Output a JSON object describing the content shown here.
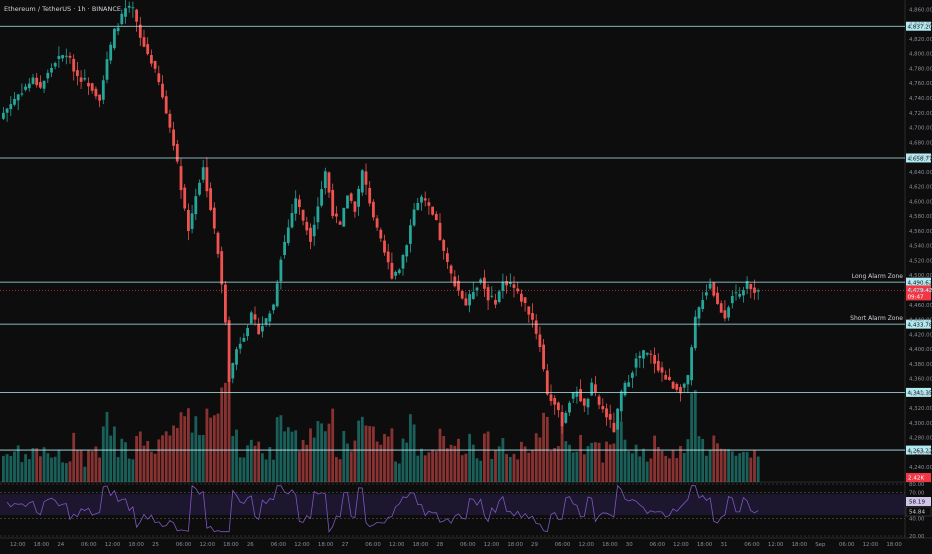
{
  "header": {
    "symbol": "Ethereum / TetherUS · 1h · BINANCE"
  },
  "colors": {
    "background": "#0d0d0d",
    "up": "#26a69a",
    "down": "#ef5350",
    "level_line": "#b2ebf2",
    "rsi_line": "#7e57c2",
    "price_tag": "#f23645"
  },
  "chart_data": {
    "type": "candlestick",
    "title": "",
    "ylim": [
      4220,
      4870
    ],
    "price_ticks": [
      4860,
      4840,
      4820,
      4800,
      4780,
      4760,
      4740,
      4720,
      4700,
      4680,
      4660,
      4640,
      4620,
      4600,
      4580,
      4560,
      4540,
      4520,
      4500,
      4480,
      4460,
      4440,
      4420,
      4400,
      4380,
      4360,
      4340,
      4320,
      4300,
      4280,
      4260,
      4240
    ],
    "x_ticks": [
      "12:00",
      "18:00",
      "24",
      "06:00",
      "12:00",
      "18:00",
      "25",
      "06:00",
      "12:00",
      "18:00",
      "26",
      "06:00",
      "12:00",
      "18:00",
      "27",
      "06:00",
      "12:00",
      "18:00",
      "28",
      "06:00",
      "12:00",
      "18:00",
      "29",
      "06:00",
      "12:00",
      "18:00",
      "30",
      "06:00",
      "12:00",
      "18:00",
      "31",
      "06:00",
      "12:00",
      "18:00",
      "Sep",
      "06:00",
      "12:00",
      "18:00"
    ],
    "levels": [
      {
        "value": 4837.2,
        "label": "4,837.20",
        "name": ""
      },
      {
        "value": 4658.77,
        "label": "4,658.77",
        "name": ""
      },
      {
        "value": 4490.62,
        "label": "4,490.62",
        "name": "Long Alarm Zone"
      },
      {
        "value": 4433.78,
        "label": "4,433.78",
        "name": "Short Alarm Zone"
      },
      {
        "value": 4341.35,
        "label": "4,341.35",
        "name": ""
      },
      {
        "value": 4263.22,
        "label": "4,263.22",
        "name": ""
      }
    ],
    "last_price": {
      "value": 4479.42,
      "label": "4,479.42",
      "countdown": "09:47"
    },
    "volume_tag": "2.42K",
    "close_path": [
      [
        0,
        4720
      ],
      [
        4,
        4745
      ],
      [
        8,
        4765
      ],
      [
        10,
        4755
      ],
      [
        14,
        4790
      ],
      [
        17,
        4800
      ],
      [
        20,
        4770
      ],
      [
        23,
        4760
      ],
      [
        26,
        4740
      ],
      [
        28,
        4790
      ],
      [
        30,
        4830
      ],
      [
        33,
        4860
      ],
      [
        35,
        4860
      ],
      [
        37,
        4820
      ],
      [
        40,
        4790
      ],
      [
        42,
        4760
      ],
      [
        44,
        4720
      ],
      [
        46,
        4680
      ],
      [
        48,
        4620
      ],
      [
        50,
        4560
      ],
      [
        52,
        4610
      ],
      [
        54,
        4645
      ],
      [
        56,
        4590
      ],
      [
        58,
        4530
      ],
      [
        60,
        4440
      ],
      [
        61,
        4360
      ],
      [
        63,
        4400
      ],
      [
        65,
        4420
      ],
      [
        67,
        4445
      ],
      [
        69,
        4425
      ],
      [
        71,
        4440
      ],
      [
        73,
        4460
      ],
      [
        75,
        4525
      ],
      [
        77,
        4565
      ],
      [
        79,
        4605
      ],
      [
        81,
        4575
      ],
      [
        83,
        4550
      ],
      [
        85,
        4595
      ],
      [
        87,
        4640
      ],
      [
        89,
        4585
      ],
      [
        91,
        4565
      ],
      [
        93,
        4610
      ],
      [
        95,
        4590
      ],
      [
        97,
        4640
      ],
      [
        99,
        4600
      ],
      [
        101,
        4560
      ],
      [
        103,
        4530
      ],
      [
        105,
        4500
      ],
      [
        107,
        4510
      ],
      [
        109,
        4545
      ],
      [
        111,
        4590
      ],
      [
        113,
        4605
      ],
      [
        115,
        4590
      ],
      [
        117,
        4570
      ],
      [
        119,
        4530
      ],
      [
        121,
        4500
      ],
      [
        123,
        4480
      ],
      [
        125,
        4460
      ],
      [
        127,
        4480
      ],
      [
        129,
        4495
      ],
      [
        131,
        4470
      ],
      [
        133,
        4465
      ],
      [
        135,
        4490
      ],
      [
        137,
        4490
      ],
      [
        139,
        4475
      ],
      [
        141,
        4460
      ],
      [
        143,
        4440
      ],
      [
        145,
        4405
      ],
      [
        147,
        4340
      ],
      [
        149,
        4325
      ],
      [
        151,
        4300
      ],
      [
        153,
        4330
      ],
      [
        155,
        4345
      ],
      [
        157,
        4320
      ],
      [
        159,
        4350
      ],
      [
        161,
        4325
      ],
      [
        163,
        4310
      ],
      [
        165,
        4290
      ],
      [
        167,
        4340
      ],
      [
        169,
        4360
      ],
      [
        171,
        4385
      ],
      [
        173,
        4395
      ],
      [
        175,
        4390
      ],
      [
        177,
        4375
      ],
      [
        179,
        4360
      ],
      [
        181,
        4350
      ],
      [
        183,
        4345
      ],
      [
        185,
        4360
      ],
      [
        187,
        4440
      ],
      [
        189,
        4470
      ],
      [
        191,
        4490
      ],
      [
        193,
        4460
      ],
      [
        195,
        4445
      ],
      [
        197,
        4475
      ],
      [
        199,
        4470
      ],
      [
        201,
        4490
      ],
      [
        203,
        4480
      ],
      [
        204,
        4479.42
      ]
    ],
    "rsi": {
      "levels": [
        80,
        70,
        40,
        20
      ],
      "labels": [
        "80.00",
        "70.00",
        "40.00",
        "20.00"
      ],
      "value_a": "58.19",
      "value_b": "54.84"
    }
  }
}
